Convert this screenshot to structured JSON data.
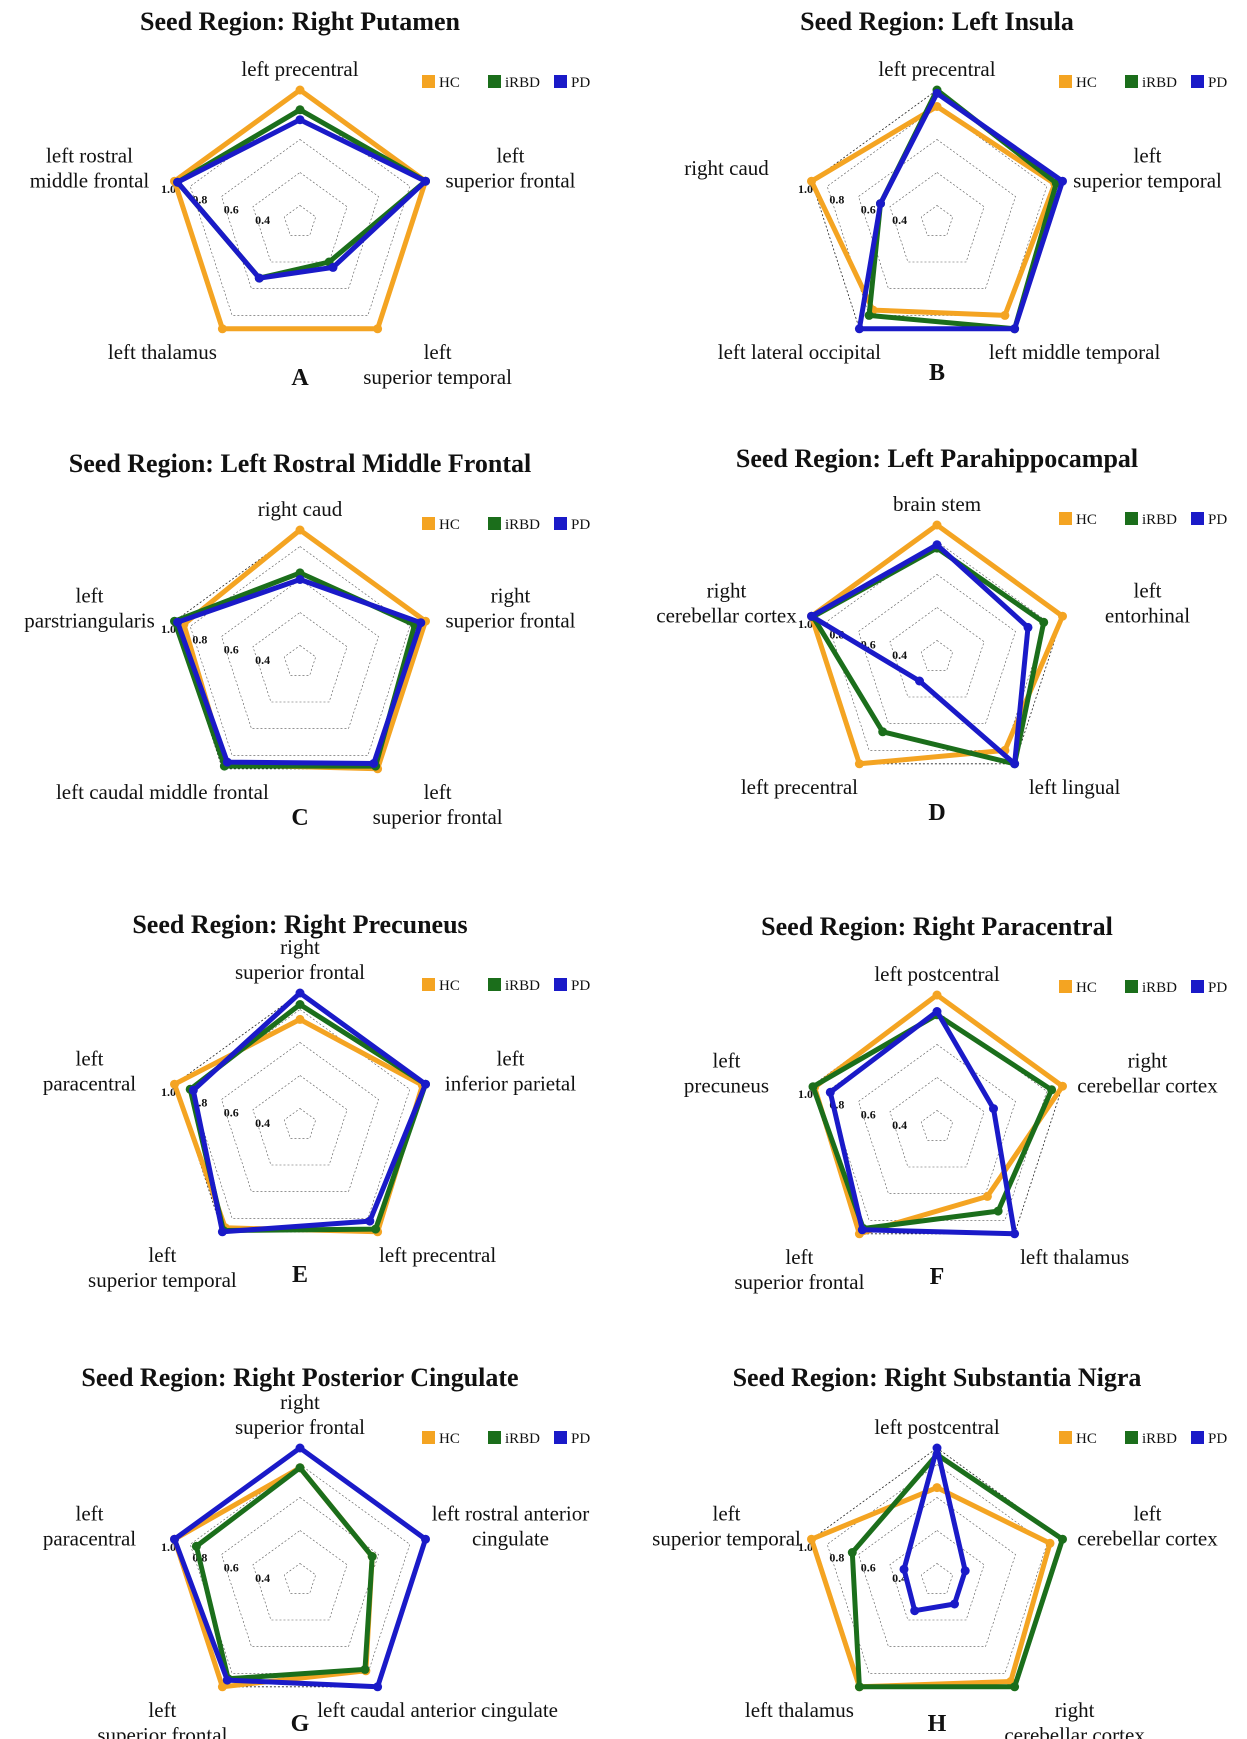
{
  "figure": {
    "legend": [
      "HC",
      "iRBD",
      "PD"
    ],
    "colors": {
      "HC": "#F4A422",
      "iRBD": "#1B6E1B",
      "PD": "#1A1AC8"
    },
    "tick_labels": [
      "0.4",
      "0.6",
      "0.8",
      "1.0"
    ]
  },
  "chart_data": [
    {
      "type": "radar",
      "panel": "A",
      "title": "Seed Region: Right Putamen",
      "axes": [
        "left precentral",
        "left superior frontal",
        "left superior temporal",
        "left thalamus",
        "left rostral middle frontal"
      ],
      "rlim": [
        0.2,
        1.0
      ],
      "rticks": [
        0.4,
        0.6,
        0.8,
        1.0
      ],
      "legend_position": "top-right",
      "series": [
        {
          "name": "HC",
          "values": [
            1.0,
            1.0,
            1.0,
            1.0,
            1.0
          ]
        },
        {
          "name": "iRBD",
          "values": [
            0.88,
            1.0,
            0.5,
            0.62,
            0.98
          ]
        },
        {
          "name": "PD",
          "values": [
            0.82,
            1.0,
            0.54,
            0.62,
            0.98
          ]
        }
      ]
    },
    {
      "type": "radar",
      "panel": "B",
      "title": "Seed Region: Left Insula",
      "axes": [
        "left precentral",
        "left superior temporal",
        "left middle temporal",
        "left lateral occipital",
        "right caud"
      ],
      "rlim": [
        0.2,
        1.0
      ],
      "rticks": [
        0.4,
        0.6,
        0.8,
        1.0
      ],
      "legend_position": "top-right",
      "series": [
        {
          "name": "HC",
          "values": [
            0.9,
            0.95,
            0.9,
            0.86,
            1.0
          ]
        },
        {
          "name": "iRBD",
          "values": [
            1.0,
            0.96,
            1.0,
            0.9,
            0.56
          ]
        },
        {
          "name": "PD",
          "values": [
            0.98,
            1.0,
            1.0,
            1.0,
            0.56
          ]
        }
      ]
    },
    {
      "type": "radar",
      "panel": "C",
      "title": "Seed Region: Left Rostral Middle Frontal",
      "axes": [
        "right caud",
        "right superior frontal",
        "left superior frontal",
        "left caudal middle frontal",
        "left parstriangularis"
      ],
      "rlim": [
        0.2,
        1.0
      ],
      "rticks": [
        0.4,
        0.6,
        0.8,
        1.0
      ],
      "legend_position": "top-right",
      "series": [
        {
          "name": "HC",
          "values": [
            1.0,
            1.0,
            1.0,
            0.97,
            0.94
          ]
        },
        {
          "name": "iRBD",
          "values": [
            0.74,
            0.93,
            0.98,
            0.98,
            1.0
          ]
        },
        {
          "name": "PD",
          "values": [
            0.7,
            0.97,
            0.96,
            0.95,
            0.98
          ]
        }
      ]
    },
    {
      "type": "radar",
      "panel": "D",
      "title": "Seed Region: Left Parahippocampal",
      "axes": [
        "brain stem",
        "left entorhinal",
        "left lingual",
        "left precentral",
        "right cerebellar cortex"
      ],
      "rlim": [
        0.2,
        1.0
      ],
      "rticks": [
        0.4,
        0.6,
        0.8,
        1.0
      ],
      "legend_position": "top-right",
      "series": [
        {
          "name": "HC",
          "values": [
            1.0,
            1.0,
            0.9,
            1.0,
            1.0
          ]
        },
        {
          "name": "iRBD",
          "values": [
            0.86,
            0.88,
            1.0,
            0.76,
            0.99
          ]
        },
        {
          "name": "PD",
          "values": [
            0.88,
            0.78,
            1.0,
            0.38,
            1.0
          ]
        }
      ]
    },
    {
      "type": "radar",
      "panel": "E",
      "title": "Seed Region: Right Precuneus",
      "axes": [
        "right superior frontal",
        "left inferior parietal",
        "left precentral",
        "left superior temporal",
        "left paracentral"
      ],
      "rlim": [
        0.2,
        1.0
      ],
      "rticks": [
        0.4,
        0.6,
        0.8,
        1.0
      ],
      "legend_position": "top-right",
      "series": [
        {
          "name": "HC",
          "values": [
            0.84,
            0.98,
            1.0,
            0.97,
            1.0
          ]
        },
        {
          "name": "iRBD",
          "values": [
            0.93,
            1.0,
            0.98,
            0.99,
            0.9
          ]
        },
        {
          "name": "PD",
          "values": [
            1.0,
            1.0,
            0.92,
            1.0,
            0.88
          ]
        }
      ]
    },
    {
      "type": "radar",
      "panel": "F",
      "title": "Seed Region: Right Paracentral",
      "axes": [
        "left postcentral",
        "right cerebellar cortex",
        "left thalamus",
        "left superior frontal",
        "left precuneus"
      ],
      "rlim": [
        0.2,
        1.0
      ],
      "rticks": [
        0.4,
        0.6,
        0.8,
        1.0
      ],
      "legend_position": "top-right",
      "series": [
        {
          "name": "HC",
          "values": [
            1.0,
            1.0,
            0.72,
            1.0,
            0.98
          ]
        },
        {
          "name": "iRBD",
          "values": [
            0.88,
            0.93,
            0.83,
            0.96,
            0.99
          ]
        },
        {
          "name": "PD",
          "values": [
            0.9,
            0.56,
            1.0,
            0.97,
            0.88
          ]
        }
      ]
    },
    {
      "type": "radar",
      "panel": "G",
      "title": "Seed Region: Right Posterior Cingulate",
      "axes": [
        "right superior frontal",
        "left rostral anterior cingulate",
        "left caudal anterior cingulate",
        "left superior frontal",
        "left paracentral"
      ],
      "rlim": [
        0.2,
        1.0
      ],
      "rticks": [
        0.4,
        0.6,
        0.8,
        1.0
      ],
      "legend_position": "top-right",
      "series": [
        {
          "name": "HC",
          "values": [
            0.88,
            0.66,
            0.88,
            1.0,
            1.0
          ]
        },
        {
          "name": "iRBD",
          "values": [
            0.88,
            0.66,
            0.87,
            0.94,
            0.86
          ]
        },
        {
          "name": "PD",
          "values": [
            1.0,
            1.0,
            1.0,
            0.95,
            1.0
          ]
        }
      ]
    },
    {
      "type": "radar",
      "panel": "H",
      "title": "Seed Region: Right Substantia Nigra",
      "axes": [
        "left postcentral",
        "left cerebellar cortex",
        "right cerebellar cortex",
        "left thalamus",
        "left superior temporal"
      ],
      "rlim": [
        0.2,
        1.0
      ],
      "rticks": [
        0.4,
        0.6,
        0.8,
        1.0
      ],
      "legend_position": "top-right",
      "series": [
        {
          "name": "HC",
          "values": [
            0.76,
            0.92,
            0.96,
            1.0,
            1.0
          ]
        },
        {
          "name": "iRBD",
          "values": [
            0.96,
            1.0,
            1.0,
            1.0,
            0.74
          ]
        },
        {
          "name": "PD",
          "values": [
            1.0,
            0.38,
            0.38,
            0.43,
            0.41
          ]
        }
      ]
    }
  ]
}
